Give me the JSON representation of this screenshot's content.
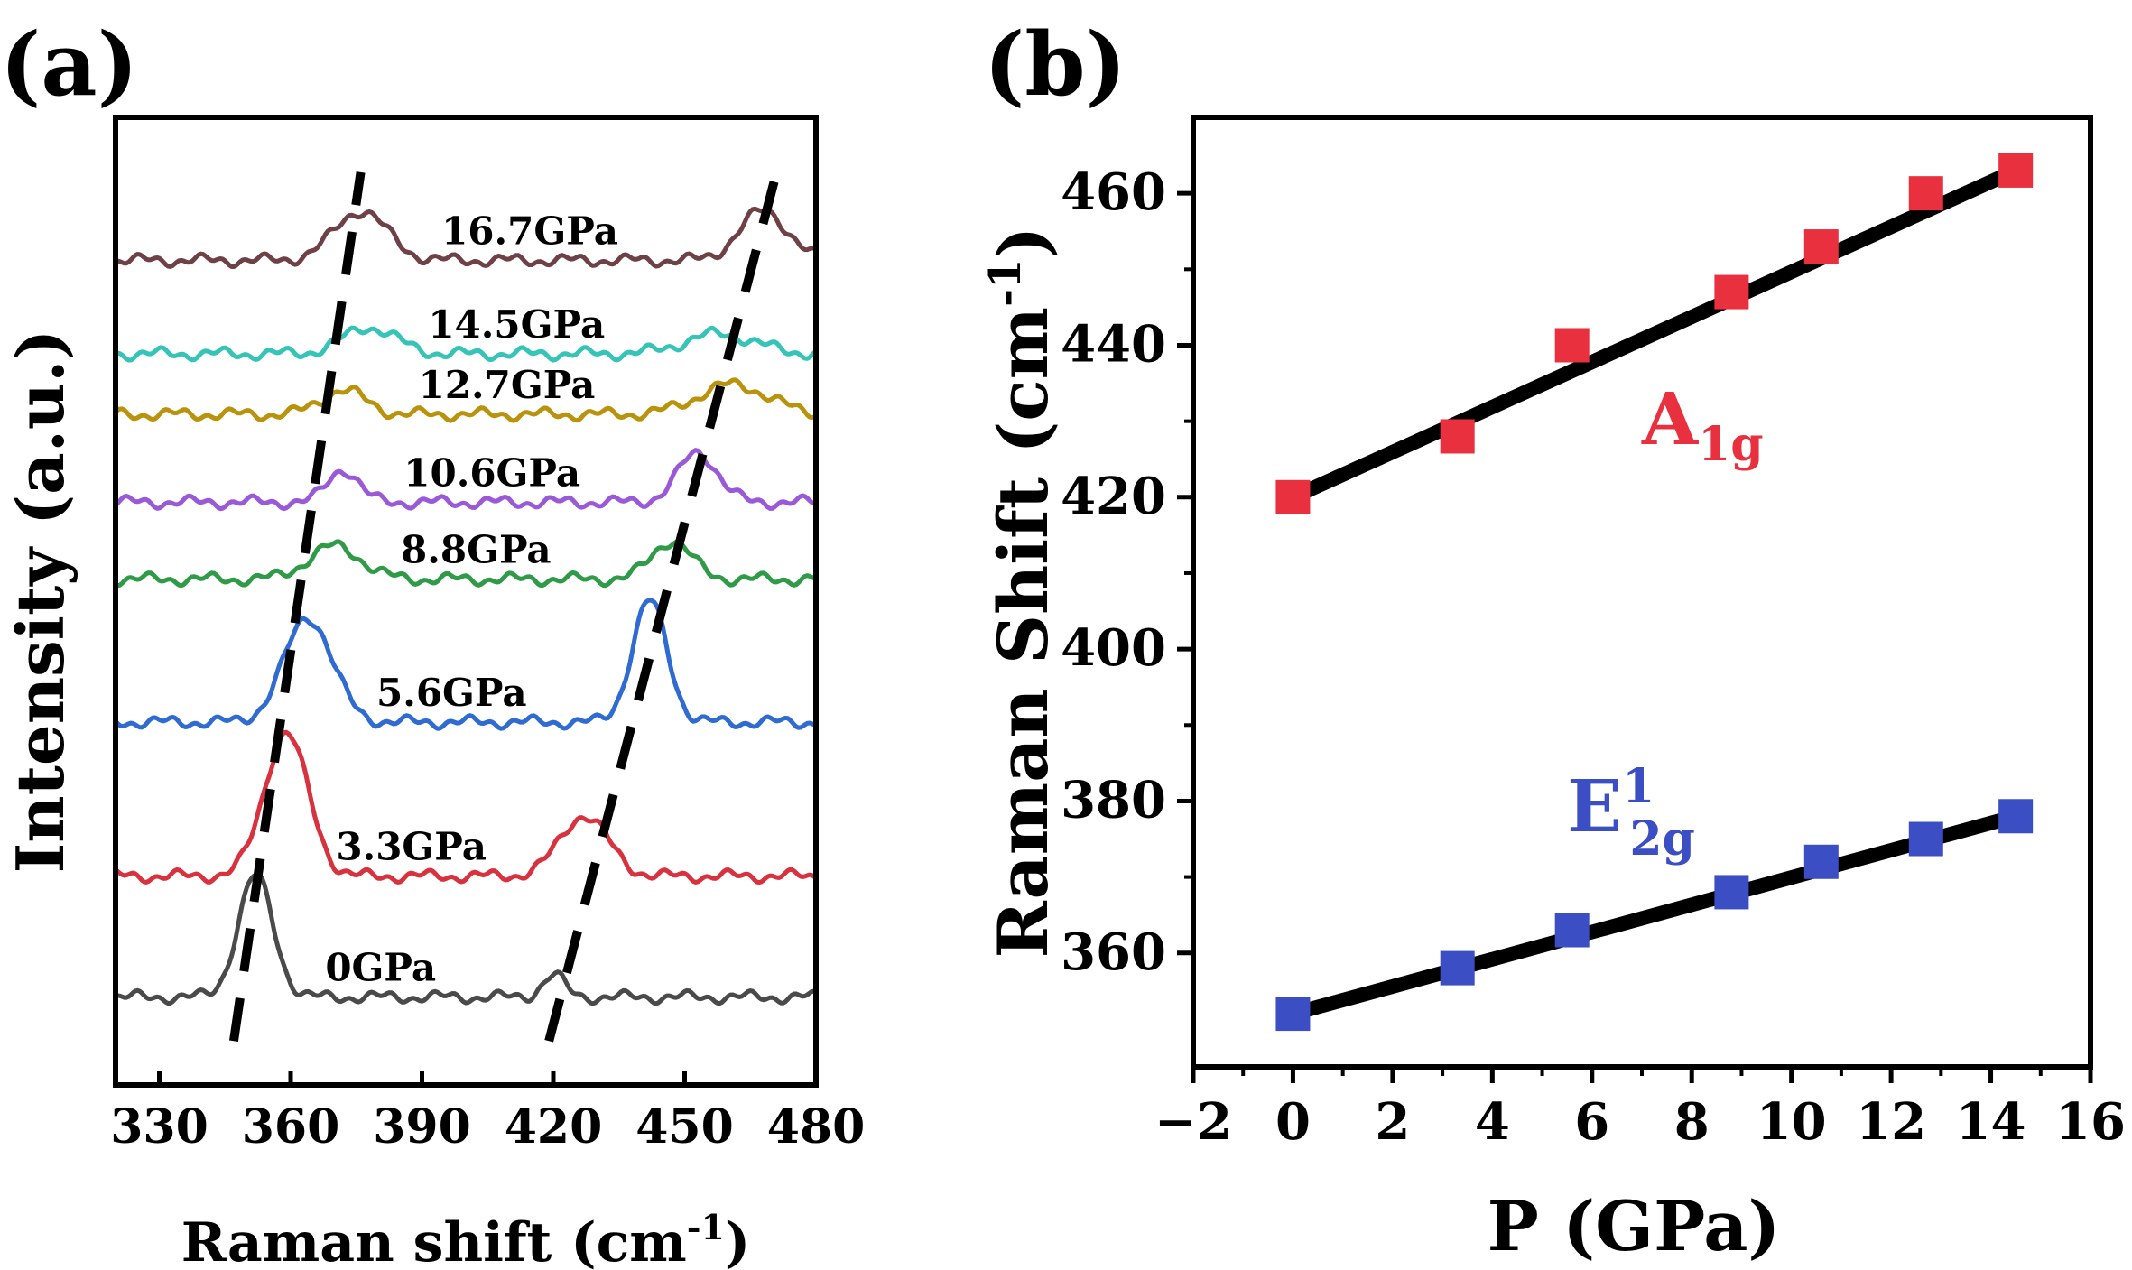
{
  "chart_data": [
    {
      "panel_label": "(a)",
      "type": "line",
      "xlabel": "Raman shift (cm",
      "xlabel_sup": "-1",
      "xlabel_close": ")",
      "ylabel": "Intensity (a.u.)",
      "xlim": [
        320,
        480
      ],
      "xticks": [
        330,
        360,
        390,
        420,
        450,
        480
      ],
      "colors": {
        "0GPa": "#4a4a4a",
        "3.3GPa": "#d8323f",
        "5.6GPa": "#2f6bd1",
        "8.8GPa": "#2f9a48",
        "10.6GPa": "#9a5ad8",
        "12.7GPa": "#b9930b",
        "14.5GPa": "#35c4b7",
        "16.7GPa": "#6e4147"
      },
      "series": [
        {
          "name": "0GPa",
          "baseline": 0.8,
          "peak1": {
            "pos": 352,
            "amp": 1.1,
            "width": 4.0
          },
          "peak2": {
            "pos": 420,
            "amp": 0.2,
            "width": 2.5
          }
        },
        {
          "name": "3.3GPa",
          "baseline": 1.9,
          "peak1": {
            "pos": 359,
            "amp": 1.3,
            "width": 5.0
          },
          "peak2": {
            "pos": 427,
            "amp": 0.55,
            "width": 5.5
          }
        },
        {
          "name": "5.6GPa",
          "baseline": 3.3,
          "peak1": {
            "pos": 364,
            "amp": 0.95,
            "width": 5.5
          },
          "peak2": {
            "pos": 442,
            "amp": 1.1,
            "width": 4.0
          }
        },
        {
          "name": "8.8GPa",
          "baseline": 4.6,
          "peak1": {
            "pos": 370,
            "amp": 0.3,
            "width": 6.0
          },
          "peak2": {
            "pos": 447,
            "amp": 0.35,
            "width": 4.5
          }
        },
        {
          "name": "10.6GPa",
          "baseline": 5.3,
          "peak1": {
            "pos": 372,
            "amp": 0.3,
            "width": 3.5
          },
          "peak2": {
            "pos": 453,
            "amp": 0.45,
            "width": 4.5
          }
        },
        {
          "name": "12.7GPa",
          "baseline": 6.1,
          "peak1": {
            "pos": 372,
            "amp": 0.22,
            "width": 5.0
          },
          "peak2": {
            "pos": 461,
            "amp": 0.27,
            "width": 8.0
          }
        },
        {
          "name": "14.5GPa",
          "baseline": 6.65,
          "peak1": {
            "pos": 378,
            "amp": 0.24,
            "width": 6.0
          },
          "peak2": {
            "pos": 458,
            "amp": 0.18,
            "width": 8.0
          }
        },
        {
          "name": "16.7GPa",
          "baseline": 7.5,
          "peak1": {
            "pos": 376,
            "amp": 0.45,
            "width": 6.0
          },
          "peak2": {
            "pos": 468,
            "amp": 0.45,
            "width": 5.5
          }
        }
      ],
      "annotations": {
        "trend_lines": [
          {
            "from": [
              347,
              0.4
            ],
            "to": [
              376,
              8.3
            ]
          },
          {
            "from": [
              419,
              0.4
            ],
            "to": [
              471,
              8.3
            ]
          }
        ]
      }
    },
    {
      "panel_label": "(b)",
      "type": "scatter",
      "xlabel": "P (GPa)",
      "ylabel": "Raman Shift (cm",
      "ylabel_sup": "-1",
      "ylabel_close": ")",
      "xlim": [
        -2,
        16
      ],
      "ylim": [
        345,
        470
      ],
      "xticks": [
        -2,
        0,
        2,
        4,
        6,
        8,
        10,
        12,
        14,
        16
      ],
      "xtick_labels": [
        "−2",
        "0",
        "2",
        "4",
        "6",
        "8",
        "10",
        "12",
        "14",
        "16"
      ],
      "yticks": [
        360,
        380,
        400,
        420,
        440,
        460
      ],
      "series": [
        {
          "name": "A",
          "name_sub": "1g",
          "color": "#e8303e",
          "x": [
            0,
            3.3,
            5.6,
            8.8,
            10.6,
            12.7,
            14.5
          ],
          "y": [
            420,
            428,
            440,
            447,
            453,
            460,
            463
          ],
          "fit": {
            "x": [
              0,
              14.5
            ],
            "y": [
              420,
              463
            ]
          }
        },
        {
          "name": "E",
          "name_sub": "2g",
          "name_sup": "1",
          "color": "#3b4ec3",
          "x": [
            0,
            3.3,
            5.6,
            8.8,
            10.6,
            12.7,
            14.5
          ],
          "y": [
            352,
            358,
            363,
            368,
            372,
            375,
            378
          ],
          "fit": {
            "x": [
              0,
              14.5
            ],
            "y": [
              352,
              378
            ]
          }
        }
      ]
    }
  ]
}
